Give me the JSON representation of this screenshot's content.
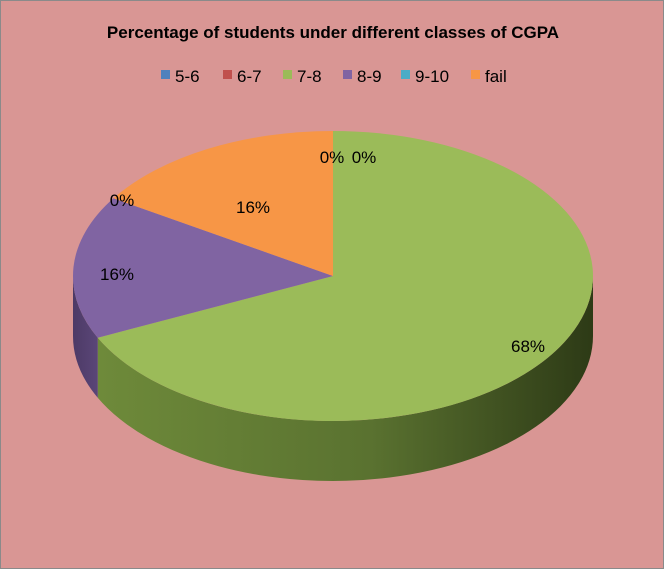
{
  "chart_data": {
    "type": "pie",
    "title": "Percentage of students under different classes of CGPA",
    "legend_position": "top",
    "three_d": true,
    "categories": [
      "5-6",
      "6-7",
      "7-8",
      "8-9",
      "9-10",
      "fail"
    ],
    "values": [
      0,
      0,
      68,
      16,
      0,
      16
    ],
    "data_labels": [
      "0%",
      "0%",
      "68%",
      "16%",
      "0%",
      "16%"
    ],
    "colors": [
      "#4f81bd",
      "#c0504d",
      "#9bbb59",
      "#8064a2",
      "#4bacc6",
      "#f79646"
    ],
    "background": "#d99694"
  }
}
